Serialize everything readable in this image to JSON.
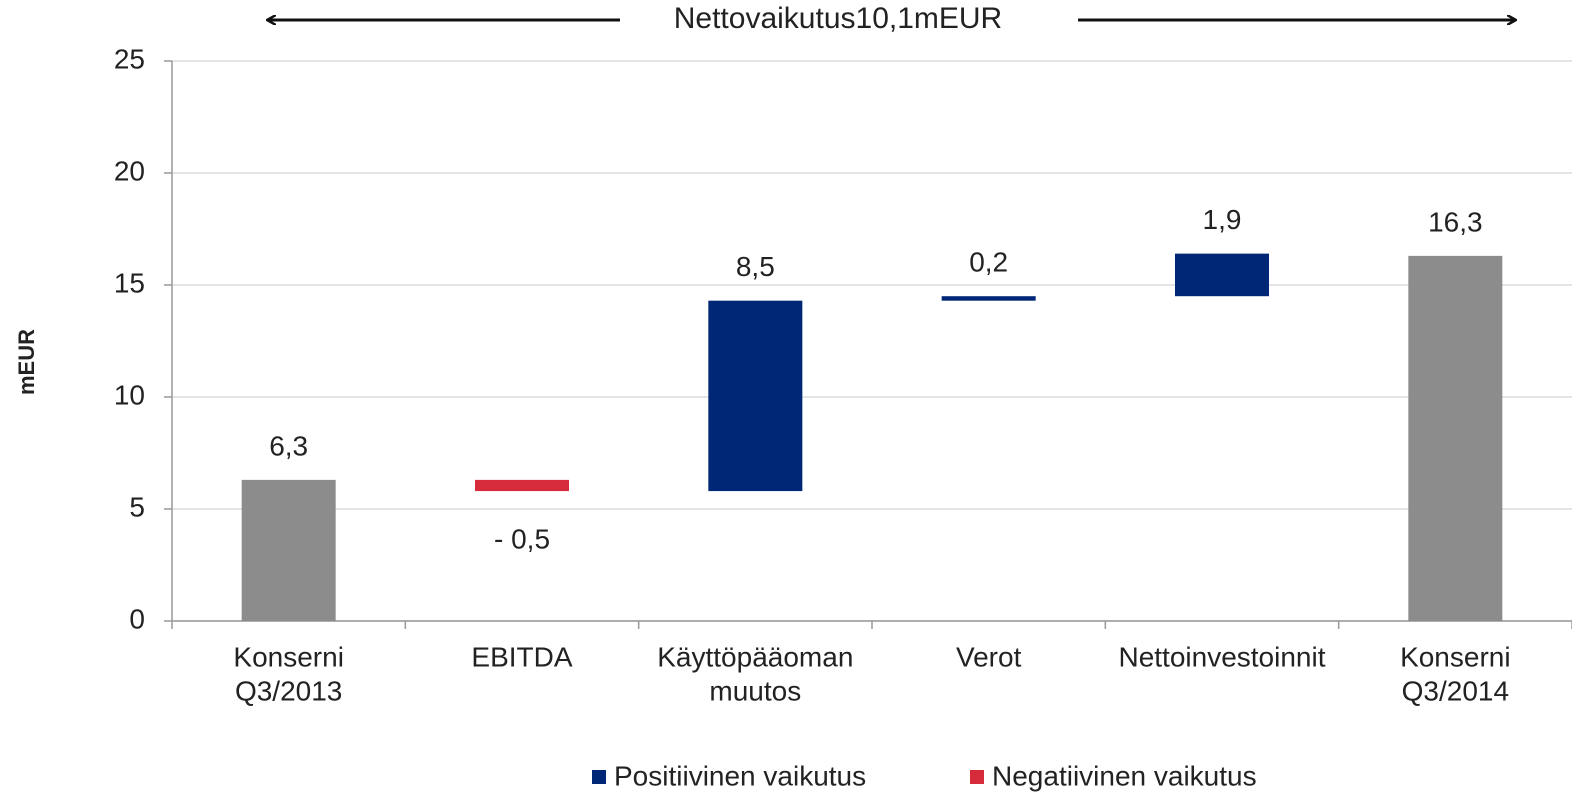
{
  "chart_data": {
    "type": "waterfall",
    "annotation": "Nettovaikutus10,1mEUR",
    "ylabel": "mEUR",
    "categories": [
      [
        "Konserni",
        "Q3/2013"
      ],
      [
        "EBITDA"
      ],
      [
        "Käyttöpääoman",
        "muutos"
      ],
      [
        "Verot"
      ],
      [
        "Nettoinvestoinnit"
      ],
      [
        "Konserni",
        "Q3/2014"
      ]
    ],
    "values": [
      6.3,
      -0.5,
      8.5,
      0.2,
      1.9,
      16.3
    ],
    "value_labels": [
      "6,3",
      "- 0,5",
      "8,5",
      "0,2",
      "1,9",
      "16,3"
    ],
    "is_total": [
      true,
      false,
      false,
      false,
      false,
      true
    ],
    "total_color": "#8c8c8c",
    "series": [
      {
        "name": "Positiivinen vaikutus",
        "color": "#002776"
      },
      {
        "name": "Negatiivinen vaikutus",
        "color": "#d52b3a"
      }
    ],
    "ylim": [
      0,
      25
    ],
    "yticks": [
      0,
      5,
      10,
      15,
      20,
      25
    ],
    "grid": true
  }
}
